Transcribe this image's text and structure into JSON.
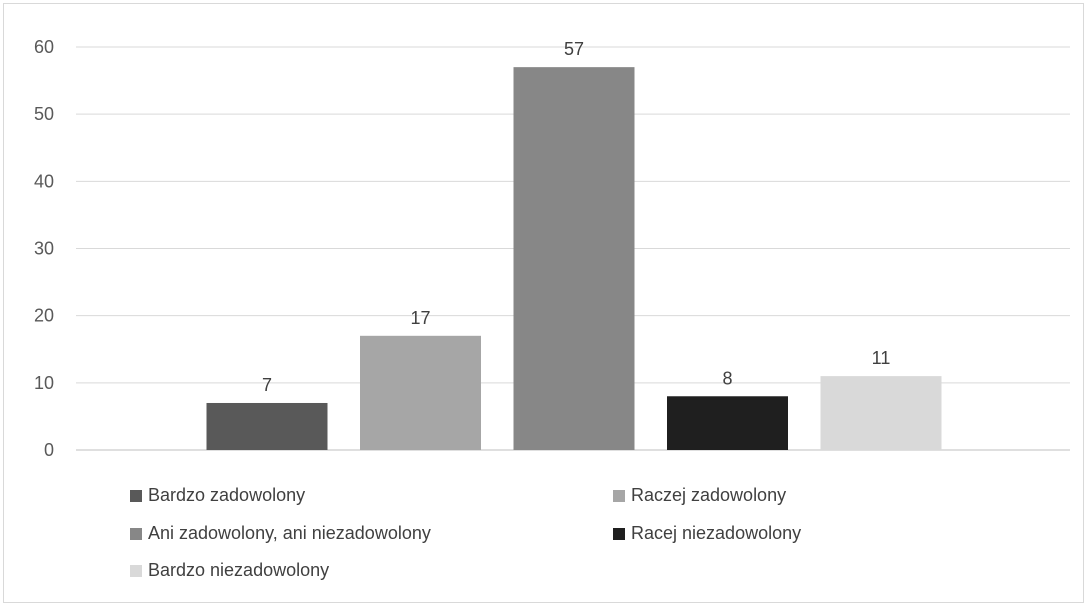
{
  "chart_data": {
    "type": "bar",
    "categories": [
      "Bardzo zadowolony",
      "Raczej zadowolony",
      "Ani zadowolony, ani niezadowolony",
      "Racej niezadowolony",
      "Bardzo niezadowolony"
    ],
    "values": [
      7,
      17,
      57,
      8,
      11
    ],
    "colors": [
      "#595959",
      "#a6a6a6",
      "#878787",
      "#1f1f1f",
      "#d9d9d9"
    ],
    "ylim": [
      0,
      60
    ],
    "yticks": [
      0,
      10,
      20,
      30,
      40,
      50,
      60
    ],
    "grid": true,
    "legend_position": "bottom"
  }
}
